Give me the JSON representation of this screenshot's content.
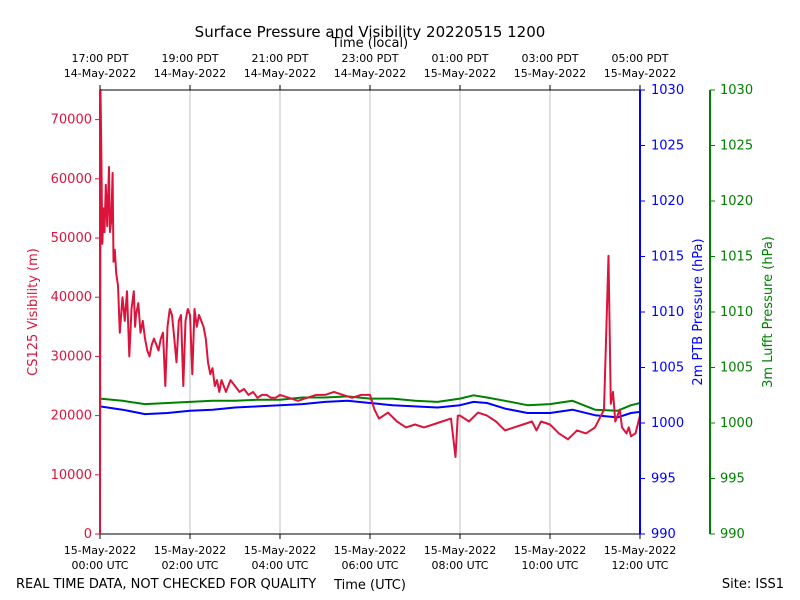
{
  "chart_data": {
    "type": "line",
    "title": "Surface Pressure and Visibility 20220515 1200",
    "top_axis_label": "Time (local)",
    "xlabel": "Time (UTC)",
    "footer_left": "REAL TIME DATA, NOT CHECKED FOR QUALITY",
    "footer_right": "Site: ISS1",
    "x_range_hours": [
      0,
      12
    ],
    "grid": "vertical at major ticks",
    "bottom_ticks": [
      {
        "h": 0,
        "l1": "15-May-2022",
        "l2": "00:00 UTC"
      },
      {
        "h": 2,
        "l1": "15-May-2022",
        "l2": "02:00 UTC"
      },
      {
        "h": 4,
        "l1": "15-May-2022",
        "l2": "04:00 UTC"
      },
      {
        "h": 6,
        "l1": "15-May-2022",
        "l2": "06:00 UTC"
      },
      {
        "h": 8,
        "l1": "15-May-2022",
        "l2": "08:00 UTC"
      },
      {
        "h": 10,
        "l1": "15-May-2022",
        "l2": "10:00 UTC"
      },
      {
        "h": 12,
        "l1": "15-May-2022",
        "l2": "12:00 UTC"
      }
    ],
    "top_ticks": [
      {
        "h": 0,
        "l1": "17:00 PDT",
        "l2": "14-May-2022"
      },
      {
        "h": 2,
        "l1": "19:00 PDT",
        "l2": "14-May-2022"
      },
      {
        "h": 4,
        "l1": "21:00 PDT",
        "l2": "14-May-2022"
      },
      {
        "h": 6,
        "l1": "23:00 PDT",
        "l2": "14-May-2022"
      },
      {
        "h": 8,
        "l1": "01:00 PDT",
        "l2": "15-May-2022"
      },
      {
        "h": 10,
        "l1": "03:00 PDT",
        "l2": "15-May-2022"
      },
      {
        "h": 12,
        "l1": "05:00 PDT",
        "l2": "15-May-2022"
      }
    ],
    "axes": [
      {
        "id": "visibility",
        "label": "CS125 Visibility (m)",
        "color": "#dc143c",
        "ylim": [
          0,
          75000
        ],
        "ticks": [
          0,
          10000,
          20000,
          30000,
          40000,
          50000,
          60000,
          70000
        ]
      },
      {
        "id": "ptb",
        "label": "2m PTB Pressure (hPa)",
        "color": "#0000ff",
        "ylim": [
          990,
          1030
        ],
        "ticks": [
          990,
          995,
          1000,
          1005,
          1010,
          1015,
          1020,
          1025,
          1030
        ]
      },
      {
        "id": "lufft",
        "label": "3m Lufft Pressure (hPa)",
        "color": "#008000",
        "ylim": [
          990,
          1030
        ],
        "ticks": [
          990,
          995,
          1000,
          1005,
          1010,
          1015,
          1020,
          1025,
          1030
        ]
      }
    ],
    "series": [
      {
        "name": "CS125 Visibility",
        "axis": "visibility",
        "color": "#dc143c",
        "x": [
          0,
          0.01,
          0.03,
          0.05,
          0.08,
          0.1,
          0.13,
          0.16,
          0.2,
          0.22,
          0.25,
          0.28,
          0.3,
          0.33,
          0.36,
          0.4,
          0.44,
          0.5,
          0.55,
          0.6,
          0.65,
          0.7,
          0.75,
          0.78,
          0.8,
          0.85,
          0.9,
          0.95,
          1.0,
          1.05,
          1.1,
          1.15,
          1.2,
          1.25,
          1.3,
          1.35,
          1.4,
          1.45,
          1.5,
          1.55,
          1.6,
          1.65,
          1.7,
          1.75,
          1.8,
          1.85,
          1.9,
          1.95,
          2.0,
          2.05,
          2.1,
          2.15,
          2.2,
          2.25,
          2.3,
          2.35,
          2.4,
          2.45,
          2.5,
          2.55,
          2.6,
          2.65,
          2.7,
          2.8,
          2.9,
          3.0,
          3.1,
          3.2,
          3.3,
          3.4,
          3.5,
          3.6,
          3.7,
          3.8,
          3.9,
          4.0,
          4.2,
          4.4,
          4.6,
          4.8,
          5.0,
          5.2,
          5.4,
          5.6,
          5.8,
          6.0,
          6.1,
          6.2,
          6.4,
          6.6,
          6.8,
          7.0,
          7.2,
          7.4,
          7.6,
          7.8,
          7.9,
          7.95,
          8.0,
          8.2,
          8.4,
          8.6,
          8.8,
          9.0,
          9.2,
          9.4,
          9.6,
          9.7,
          9.8,
          10.0,
          10.2,
          10.4,
          10.6,
          10.8,
          11.0,
          11.2,
          11.3,
          11.35,
          11.4,
          11.45,
          11.5,
          11.55,
          11.6,
          11.7,
          11.75,
          11.8,
          11.9,
          12.0
        ],
        "values": [
          0,
          75000,
          65000,
          49000,
          55000,
          51000,
          59000,
          52000,
          62000,
          51000,
          53000,
          61000,
          46000,
          48000,
          44000,
          42000,
          34000,
          40000,
          36000,
          41000,
          30000,
          38000,
          41000,
          35000,
          37000,
          39000,
          34000,
          36000,
          33000,
          31000,
          30000,
          32000,
          33000,
          32000,
          31000,
          33000,
          34000,
          25000,
          35000,
          38000,
          37000,
          33000,
          29000,
          36000,
          37000,
          25000,
          36000,
          38000,
          37000,
          27000,
          38000,
          35000,
          37000,
          36000,
          35000,
          33000,
          29000,
          27000,
          28000,
          25000,
          26000,
          24000,
          26000,
          24000,
          26000,
          25000,
          24000,
          24500,
          23500,
          24000,
          23000,
          23500,
          23500,
          23000,
          23000,
          23500,
          23000,
          22500,
          23000,
          23500,
          23500,
          24000,
          23500,
          23000,
          23500,
          23500,
          21000,
          19500,
          20500,
          19000,
          18000,
          18500,
          18000,
          18500,
          19000,
          19500,
          13000,
          20000,
          20000,
          19000,
          20500,
          20000,
          19000,
          17500,
          18000,
          18500,
          19000,
          17500,
          19000,
          18500,
          17000,
          16000,
          17500,
          17000,
          18000,
          21000,
          47000,
          22000,
          24000,
          19000,
          20000,
          21000,
          18000,
          17000,
          18000,
          16500,
          17000,
          20000
        ]
      },
      {
        "name": "2m PTB Pressure",
        "axis": "ptb",
        "color": "#0000ff",
        "x": [
          0,
          0.5,
          1.0,
          1.5,
          2.0,
          2.5,
          3.0,
          3.5,
          4.0,
          4.5,
          5.0,
          5.5,
          6.0,
          6.5,
          7.0,
          7.5,
          8.0,
          8.3,
          8.6,
          9.0,
          9.5,
          10.0,
          10.5,
          11.0,
          11.5,
          11.8,
          12.0
        ],
        "values": [
          1001.5,
          1001.2,
          1000.8,
          1000.9,
          1001.1,
          1001.2,
          1001.4,
          1001.5,
          1001.6,
          1001.7,
          1001.9,
          1002.0,
          1001.8,
          1001.6,
          1001.5,
          1001.4,
          1001.6,
          1001.9,
          1001.8,
          1001.3,
          1000.9,
          1000.9,
          1001.2,
          1000.7,
          1000.5,
          1000.9,
          1001.0
        ]
      },
      {
        "name": "3m Lufft Pressure",
        "axis": "lufft",
        "color": "#008000",
        "x": [
          0,
          0.5,
          1.0,
          1.5,
          2.0,
          2.5,
          3.0,
          3.5,
          4.0,
          4.5,
          5.0,
          5.5,
          6.0,
          6.5,
          7.0,
          7.5,
          8.0,
          8.3,
          8.6,
          9.0,
          9.5,
          10.0,
          10.5,
          11.0,
          11.5,
          11.8,
          12.0
        ],
        "values": [
          1002.2,
          1002.0,
          1001.7,
          1001.8,
          1001.9,
          1002.0,
          1002.0,
          1002.1,
          1002.1,
          1002.3,
          1002.3,
          1002.4,
          1002.2,
          1002.2,
          1002.0,
          1001.9,
          1002.2,
          1002.5,
          1002.3,
          1002.0,
          1001.6,
          1001.7,
          1002.0,
          1001.2,
          1001.1,
          1001.6,
          1001.8
        ]
      }
    ]
  }
}
